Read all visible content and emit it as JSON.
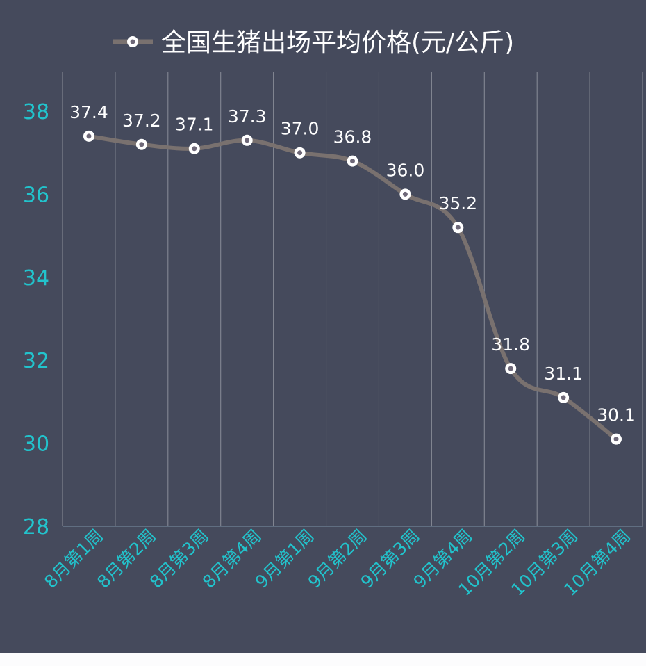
{
  "chart_data": {
    "type": "line",
    "title": "",
    "legend": {
      "position": "top",
      "entries": [
        "全国生猪出场平均价格(元/公斤)"
      ]
    },
    "categories": [
      "8月第1周",
      "8月第2周",
      "8月第3周",
      "8月第4周",
      "9月第1周",
      "9月第2周",
      "9月第3周",
      "9月第4周",
      "10月第2周",
      "10月第3周",
      "10月第4周"
    ],
    "series": [
      {
        "name": "全国生猪出场平均价格(元/公斤)",
        "values": [
          37.4,
          37.2,
          37.1,
          37.3,
          37.0,
          36.8,
          36.0,
          35.2,
          31.8,
          31.1,
          30.1
        ],
        "data_labels": [
          "37.4",
          "37.2",
          "37.1",
          "37.3",
          "37.0",
          "36.8",
          "36.0",
          "35.2",
          "31.8",
          "31.1",
          "30.1"
        ]
      }
    ],
    "ylim": [
      28,
      38
    ],
    "yticks": [
      "28",
      "30",
      "32",
      "34",
      "36",
      "38"
    ],
    "xlabel": "",
    "ylabel": "",
    "grid": "vertical",
    "smooth": true,
    "colors": {
      "background": "#454a5c",
      "line": "#79716f",
      "axis_text": "#22c3cc",
      "label_text": "#ffffff",
      "grid": "#8a8e99"
    }
  }
}
